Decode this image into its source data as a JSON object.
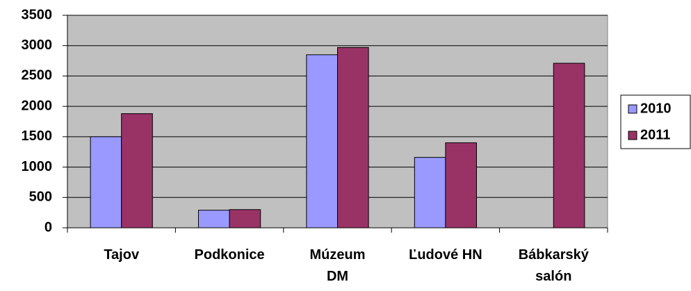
{
  "chart_data": {
    "type": "bar",
    "categories": [
      "Tajov",
      "Podkonice",
      "Múzeum\nDM",
      "Ľudové HN",
      "Bábkarský\nsalón"
    ],
    "series": [
      {
        "name": "2010",
        "color": "#9999ff",
        "values": [
          1500,
          290,
          2850,
          1160,
          null
        ]
      },
      {
        "name": "2011",
        "color": "#993366",
        "values": [
          1880,
          300,
          2970,
          1400,
          2710
        ]
      }
    ],
    "ylim": [
      0,
      3500
    ],
    "yticks": [
      0,
      500,
      1000,
      1500,
      2000,
      2500,
      3000,
      3500
    ],
    "grid": true,
    "legend": "right",
    "background": "#c0c0c0"
  }
}
